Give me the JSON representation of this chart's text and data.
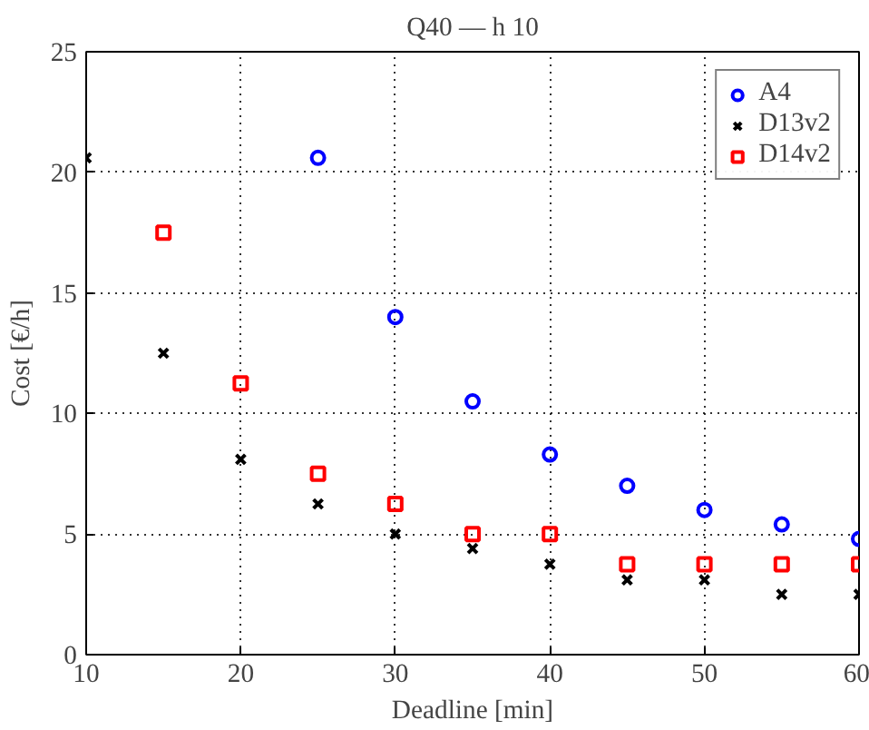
{
  "chart_data": {
    "type": "scatter",
    "title": "Q40 — h 10",
    "xlabel": "Deadline [min]",
    "ylabel": "Cost [€/h]",
    "xlim": [
      10,
      60
    ],
    "xticks": [
      10,
      20,
      30,
      40,
      50,
      60
    ],
    "ylim": [
      0,
      25
    ],
    "yticks": [
      0,
      5,
      10,
      15,
      20,
      25
    ],
    "grid": true,
    "legend": "top right",
    "series": [
      {
        "name": "A4",
        "color": "#0000ff",
        "marker": "circle",
        "x": [
          25,
          30,
          35,
          40,
          45,
          50,
          55,
          60
        ],
        "values": [
          20.6,
          14.0,
          10.5,
          8.3,
          7.0,
          6.0,
          5.4,
          4.8
        ]
      },
      {
        "name": "D13v2",
        "color": "#000000",
        "marker": "cross",
        "x": [
          10,
          15,
          20,
          25,
          30,
          35,
          40,
          45,
          50,
          55,
          60
        ],
        "values": [
          20.6,
          12.5,
          8.1,
          6.25,
          5.0,
          4.4,
          3.75,
          3.1,
          3.1,
          2.5,
          2.5
        ]
      },
      {
        "name": "D14v2",
        "color": "#ff0000",
        "marker": "square",
        "x": [
          15,
          20,
          25,
          30,
          35,
          40,
          45,
          50,
          55,
          60
        ],
        "values": [
          17.5,
          11.25,
          7.5,
          6.25,
          5.0,
          5.0,
          3.75,
          3.75,
          3.75,
          3.75
        ]
      }
    ]
  }
}
